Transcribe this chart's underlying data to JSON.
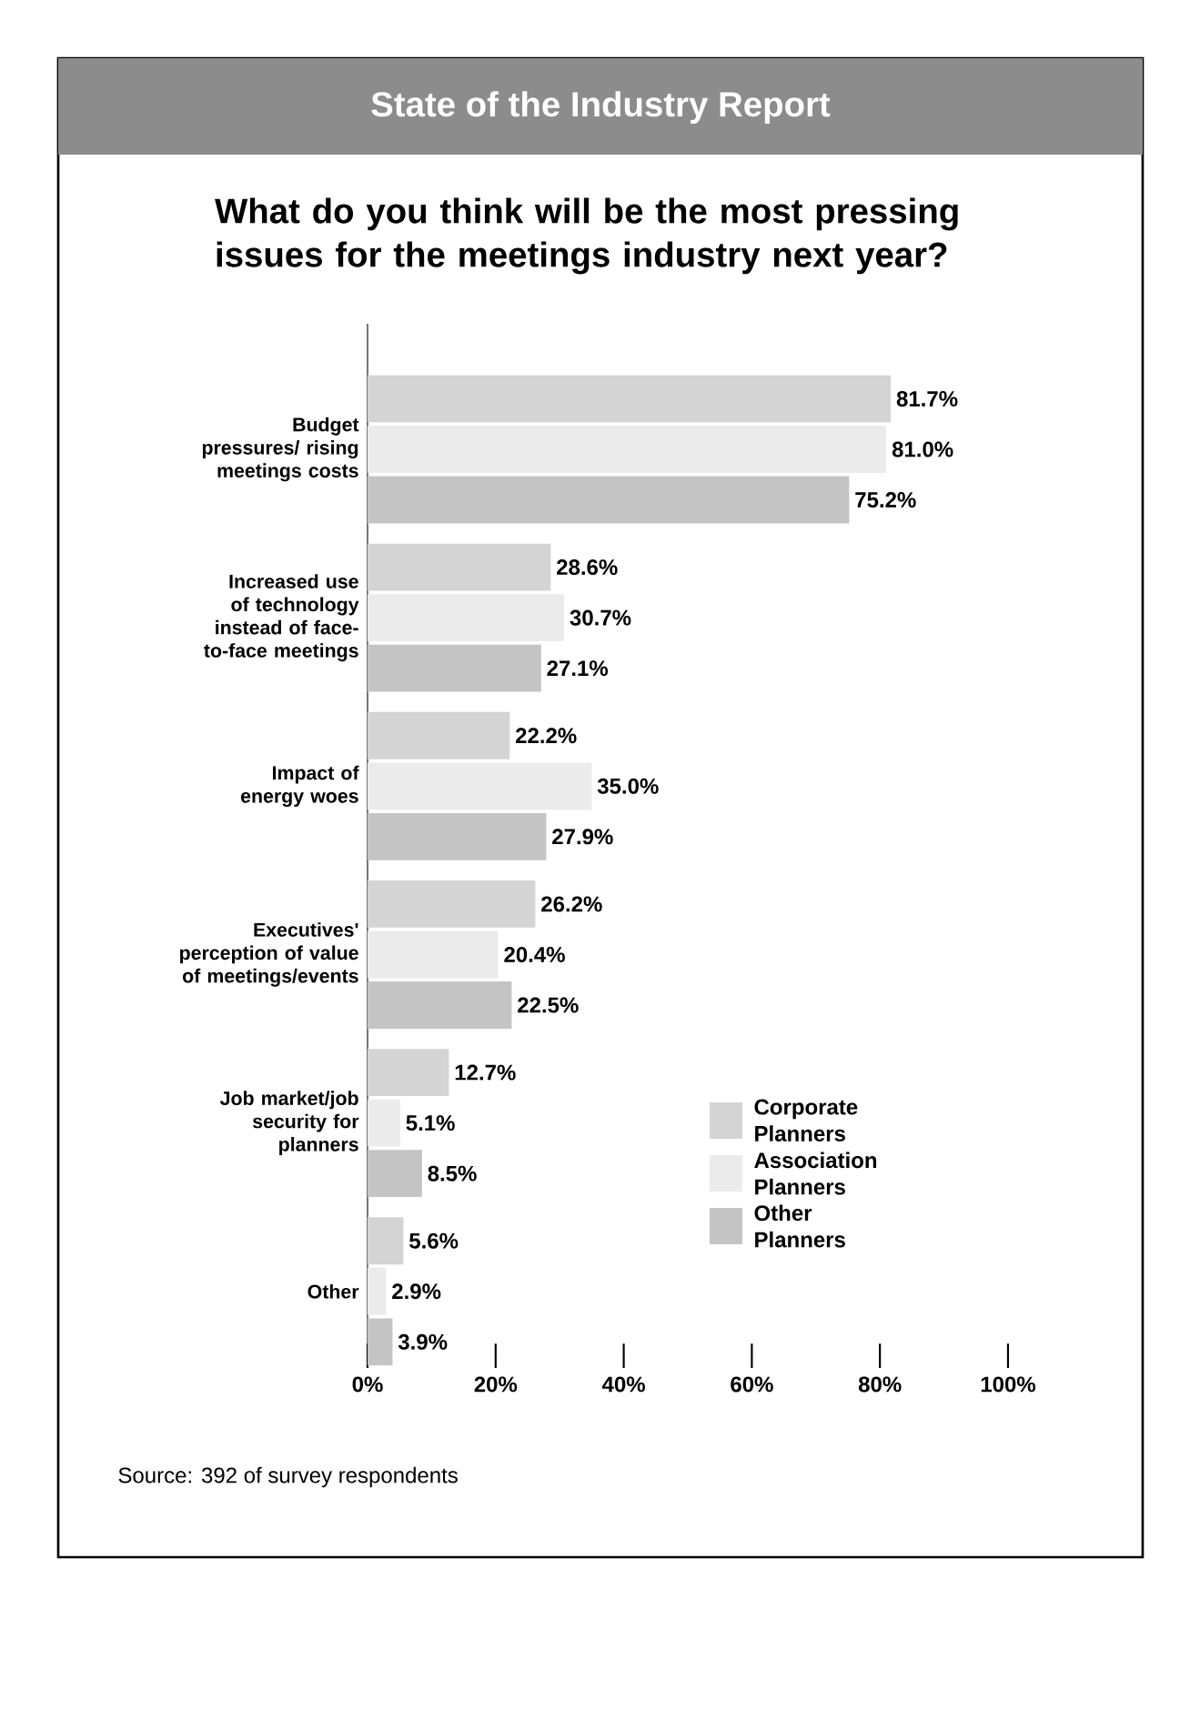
{
  "chart_data": {
    "type": "bar",
    "orientation": "horizontal",
    "subtitle": "State of the Industry Report",
    "title": "What do you think will be the most pressing issues for the meetings industry next year?",
    "categories": [
      "Budget pressures/ rising meetings costs",
      "Increased use of technology instead of face-to-face meetings",
      "Impact of energy woes",
      "Executives' perception of value of meetings/events",
      "Job market/job security for planners",
      "Other"
    ],
    "series": [
      {
        "name": "Corporate Planners",
        "color": "#d4d4d4",
        "values": [
          81.7,
          28.6,
          22.2,
          26.2,
          12.7,
          5.6
        ],
        "value_labels": [
          "81.7%",
          "28.6%",
          "22.2%",
          "26.2%",
          "12.7%",
          "5.6%"
        ]
      },
      {
        "name": "Association Planners",
        "color": "#ebebeb",
        "values": [
          81.0,
          30.7,
          35.0,
          20.4,
          5.1,
          2.9
        ],
        "value_labels": [
          "81.0%",
          "30.7%",
          "35.0%",
          "20.4%",
          "5.1%",
          "2.9%"
        ]
      },
      {
        "name": "Other Planners",
        "color": "#c4c4c4",
        "values": [
          75.2,
          27.1,
          27.9,
          22.5,
          8.5,
          3.9
        ],
        "value_labels": [
          "75.2%",
          "27.1%",
          "27.9%",
          "22.5%",
          "8.5%",
          "3.9%"
        ]
      }
    ],
    "xlim": [
      0,
      100
    ],
    "xticks": [
      {
        "value": 0,
        "label": "0%"
      },
      {
        "value": 20,
        "label": "20%"
      },
      {
        "value": 40,
        "label": "40%"
      },
      {
        "value": 60,
        "label": "60%"
      },
      {
        "value": 80,
        "label": "80%"
      },
      {
        "value": 100,
        "label": "100%"
      }
    ],
    "legend": "bottom right",
    "annotations": [
      "Source: 392 of survey respondents"
    ]
  }
}
